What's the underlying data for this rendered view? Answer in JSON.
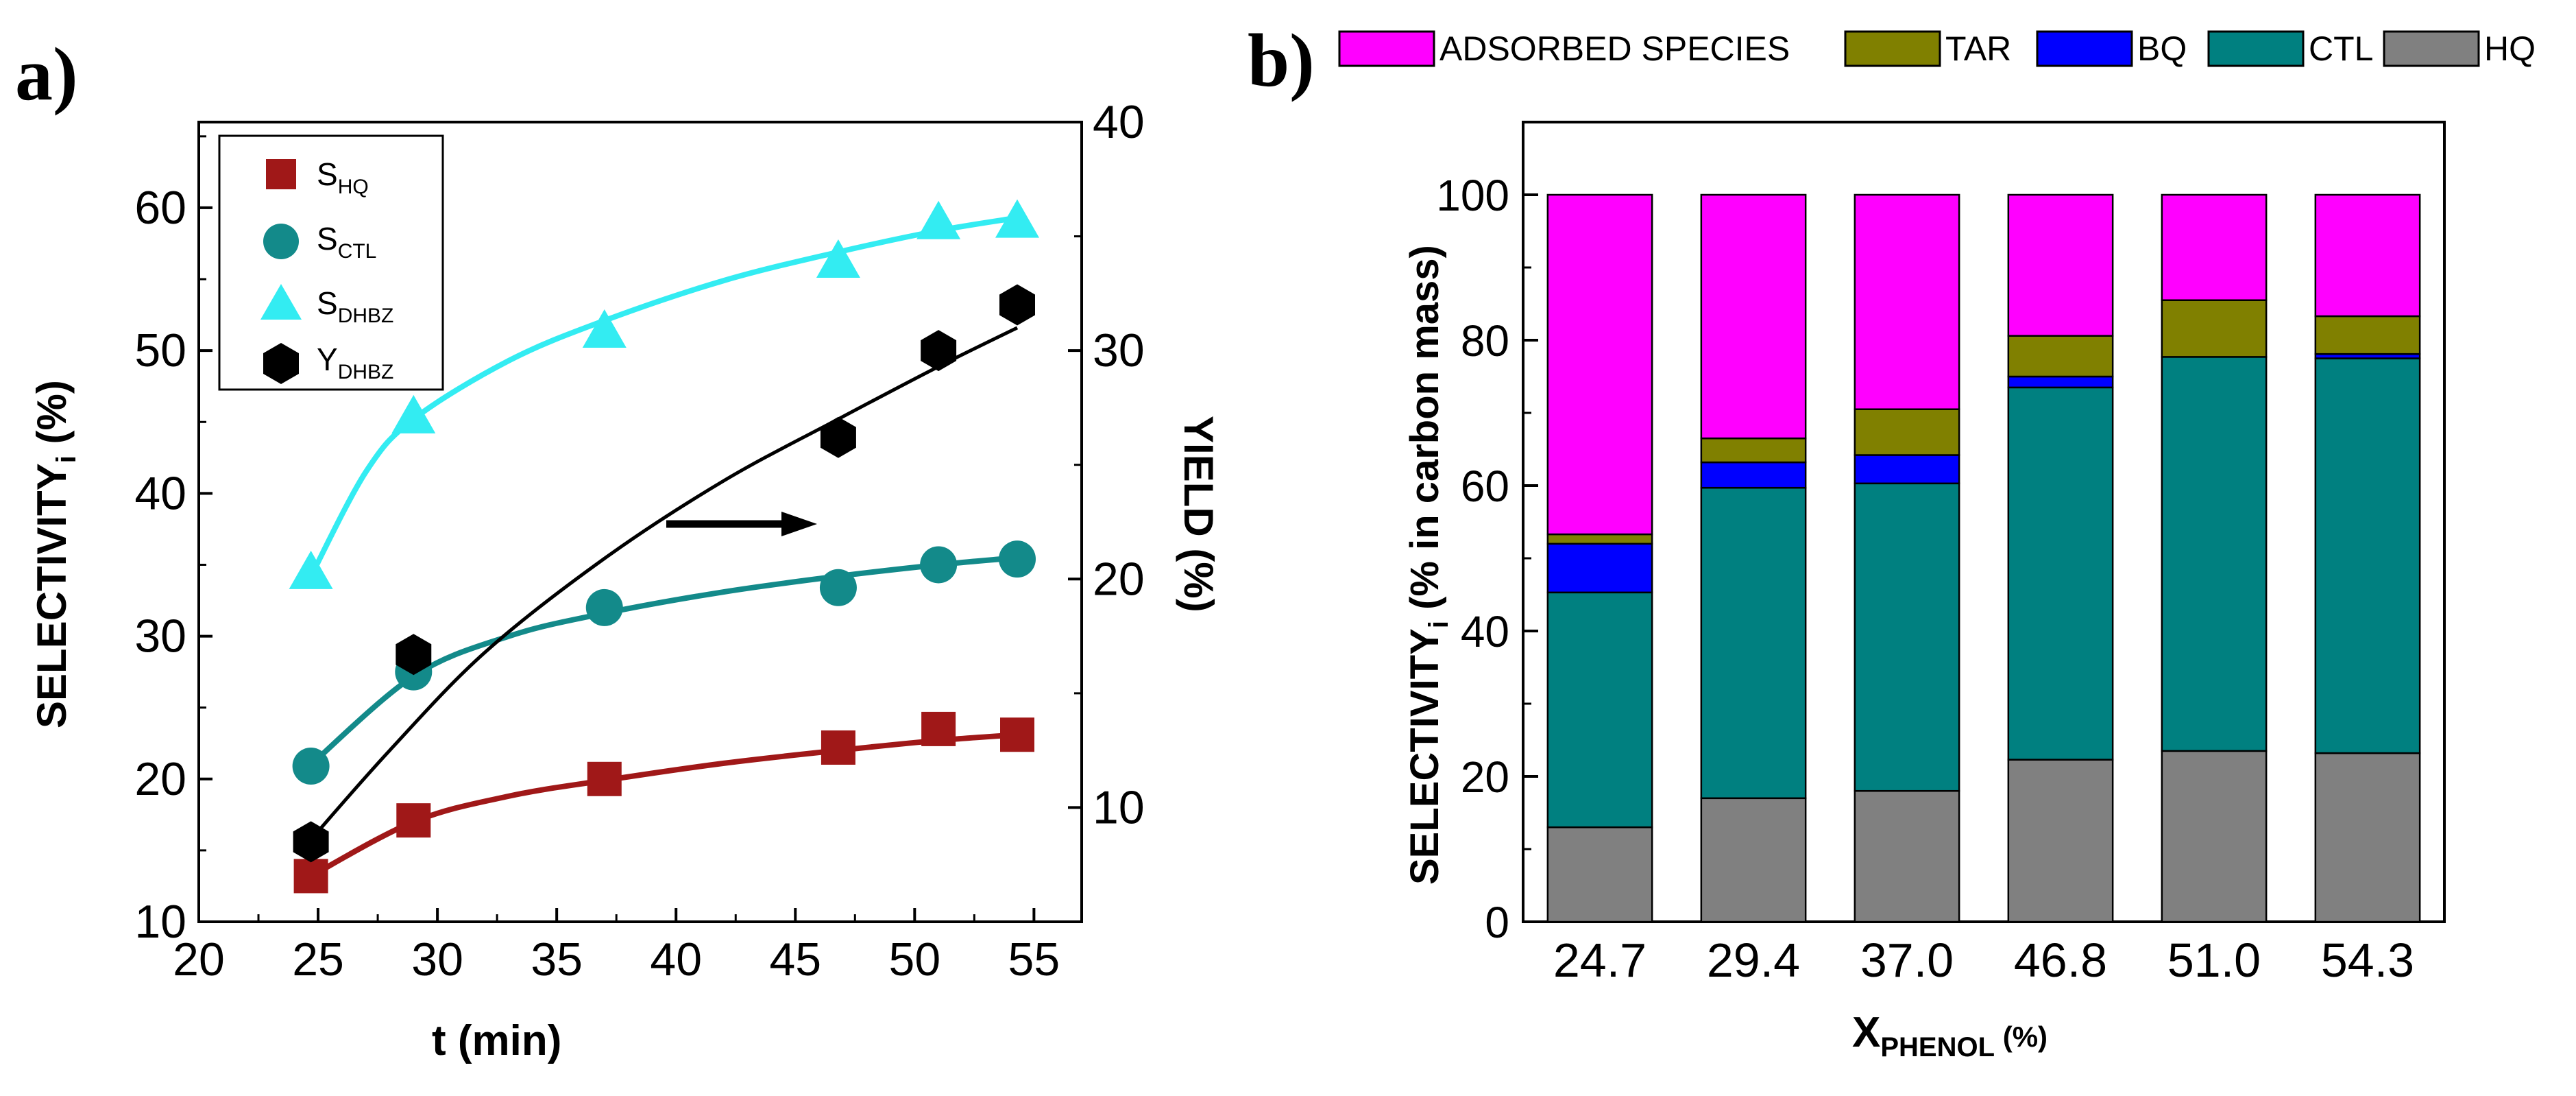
{
  "chart_data": [
    {
      "panel_label": "a)",
      "type": "scatter",
      "xlabel": "t (min)",
      "xlim": [
        20,
        57
      ],
      "xticks": [
        "20",
        "25",
        "30",
        "35",
        "40",
        "45",
        "50",
        "55"
      ],
      "ylabel": {
        "main": "SELECTIVITY",
        "sub": "i",
        "unit": " (%)"
      },
      "ylim": [
        10,
        66
      ],
      "yticks": [
        "10",
        "20",
        "30",
        "40",
        "50",
        "60"
      ],
      "y2label": "YIELD (%)",
      "y2lim": [
        5,
        40
      ],
      "y2ticks": [
        "10",
        "20",
        "30",
        "40"
      ],
      "legend": [
        {
          "main": "S",
          "sub": "HQ"
        },
        {
          "main": "S",
          "sub": "CTL"
        },
        {
          "main": "S",
          "sub": "DHBZ"
        },
        {
          "main": "Y",
          "sub": "DHBZ"
        }
      ],
      "series": [
        {
          "name": "S_HQ",
          "axis": "left",
          "marker": "square",
          "color": "#a01818",
          "points": [
            [
              24.7,
              13.2
            ],
            [
              29.0,
              17.1
            ],
            [
              37.0,
              20.0
            ],
            [
              46.8,
              22.2
            ],
            [
              51.0,
              23.5
            ],
            [
              54.3,
              23.1
            ]
          ],
          "fit": [
            [
              24.7,
              13.2
            ],
            [
              29.0,
              17.0
            ],
            [
              33.0,
              18.8
            ],
            [
              37.0,
              19.9
            ],
            [
              42.0,
              21.1
            ],
            [
              46.8,
              22.0
            ],
            [
              51.0,
              22.7
            ],
            [
              54.3,
              23.1
            ]
          ]
        },
        {
          "name": "S_CTL",
          "axis": "left",
          "marker": "circle",
          "color": "#138a8a",
          "points": [
            [
              24.7,
              20.9
            ],
            [
              29.0,
              27.5
            ],
            [
              37.0,
              32.0
            ],
            [
              46.8,
              33.4
            ],
            [
              51.0,
              35.0
            ],
            [
              54.3,
              35.4
            ]
          ],
          "fit": [
            [
              24.7,
              21.0
            ],
            [
              29.0,
              27.2
            ],
            [
              33.0,
              30.0
            ],
            [
              37.0,
              31.6
            ],
            [
              42.0,
              33.1
            ],
            [
              46.8,
              34.2
            ],
            [
              51.0,
              35.0
            ],
            [
              54.3,
              35.5
            ]
          ]
        },
        {
          "name": "S_DHBZ",
          "axis": "left",
          "marker": "triangle",
          "color": "#33ecf2",
          "points": [
            [
              24.7,
              34.5
            ],
            [
              29.0,
              45.4
            ],
            [
              37.0,
              51.4
            ],
            [
              46.8,
              56.3
            ],
            [
              51.0,
              59.0
            ],
            [
              54.3,
              59.1
            ]
          ],
          "fit": [
            [
              24.7,
              34.2
            ],
            [
              27.0,
              41.5
            ],
            [
              29.0,
              45.2
            ],
            [
              33.0,
              49.3
            ],
            [
              37.0,
              52.1
            ],
            [
              42.0,
              54.9
            ],
            [
              46.8,
              56.9
            ],
            [
              51.0,
              58.4
            ],
            [
              54.3,
              59.3
            ]
          ]
        },
        {
          "name": "Y_DHBZ",
          "axis": "right",
          "marker": "hexagon",
          "color": "#000000",
          "points": [
            [
              24.7,
              8.5
            ],
            [
              29.0,
              16.7
            ],
            [
              46.8,
              26.2
            ],
            [
              51.0,
              30.0
            ],
            [
              54.3,
              32.0
            ]
          ],
          "fit": [
            [
              24.7,
              8.6
            ],
            [
              28.0,
              12.5
            ],
            [
              32.0,
              16.8
            ],
            [
              37.0,
              20.9
            ],
            [
              42.0,
              24.3
            ],
            [
              46.8,
              27.0
            ],
            [
              51.0,
              29.3
            ],
            [
              54.3,
              31.0
            ]
          ]
        }
      ],
      "annotation": {
        "type": "arrow",
        "direction": "right",
        "meaning": "Y_DHBZ plotted on right axis"
      }
    },
    {
      "panel_label": "b)",
      "type": "bar",
      "stacked": true,
      "xlabel": {
        "main": "X",
        "sub": "PHENOL",
        "unit": " (%)"
      },
      "ylabel": {
        "main": "SELECTIVITY",
        "sub": "i",
        "unit": " (% in carbon mass)"
      },
      "ylim": [
        0,
        110
      ],
      "yticks": [
        "0",
        "20",
        "40",
        "60",
        "80",
        "100"
      ],
      "categories": [
        "24.7",
        "29.4",
        "37.0",
        "46.8",
        "51.0",
        "54.3"
      ],
      "legend_order": [
        "ADSORBED SPECIES",
        "TAR",
        "BQ",
        "CTL",
        "HQ"
      ],
      "series": [
        {
          "name": "HQ",
          "color": "#808080",
          "values": [
            13.0,
            17.0,
            18.0,
            22.3,
            23.5,
            23.2
          ]
        },
        {
          "name": "CTL",
          "color": "#008080",
          "values": [
            32.3,
            42.7,
            42.3,
            51.2,
            54.2,
            54.3
          ]
        },
        {
          "name": "BQ",
          "color": "#0000ff",
          "values": [
            6.7,
            3.5,
            3.9,
            1.5,
            0.0,
            0.6
          ]
        },
        {
          "name": "TAR",
          "color": "#808000",
          "values": [
            1.3,
            3.3,
            6.3,
            5.6,
            7.8,
            5.2
          ]
        },
        {
          "name": "ADSORBED SPECIES",
          "color": "#ff00ff",
          "values": [
            46.7,
            33.5,
            29.5,
            19.4,
            14.5,
            16.7
          ]
        }
      ]
    }
  ]
}
